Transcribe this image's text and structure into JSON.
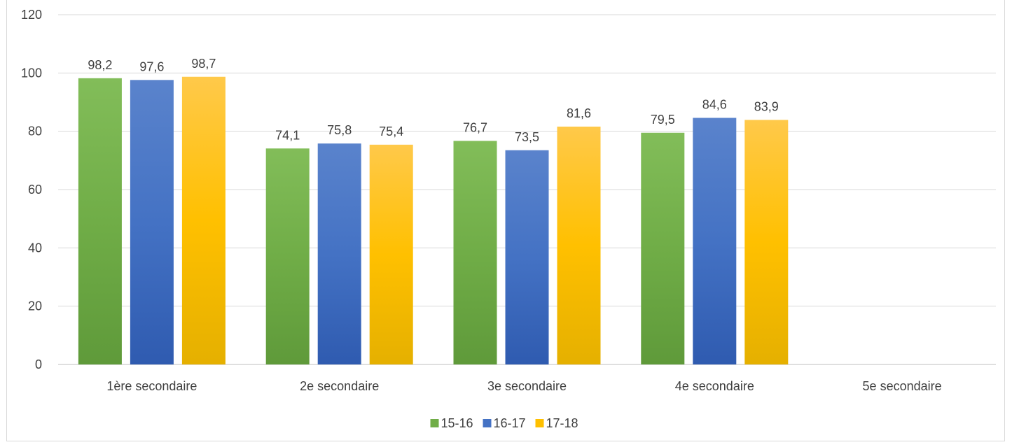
{
  "chart_data": {
    "type": "bar",
    "categories": [
      "1ère secondaire",
      "2e secondaire",
      "3e secondaire",
      "4e secondaire",
      "5e secondaire"
    ],
    "series": [
      {
        "name": "15-16",
        "values": [
          98.2,
          74.1,
          76.7,
          79.5,
          null
        ],
        "labels": [
          "98,2",
          "74,1",
          "76,7",
          "79,5",
          ""
        ],
        "color": "#70ad47",
        "color_light": "#82bd59",
        "color_dark": "#5f9a3a"
      },
      {
        "name": "16-17",
        "values": [
          97.6,
          75.8,
          73.5,
          84.6,
          null
        ],
        "labels": [
          "97,6",
          "75,8",
          "73,5",
          "84,6",
          ""
        ],
        "color": "#4472c4",
        "color_light": "#5a83cc",
        "color_dark": "#2f5bb0"
      },
      {
        "name": "17-18",
        "values": [
          98.7,
          75.4,
          81.6,
          83.9,
          null
        ],
        "labels": [
          "98,7",
          "75,4",
          "81,6",
          "83,9",
          ""
        ],
        "color": "#ffc000",
        "color_light": "#ffc94a",
        "color_dark": "#e5b000"
      }
    ],
    "yticks": [
      "0",
      "20",
      "40",
      "60",
      "80",
      "100",
      "120"
    ],
    "ylim": [
      0,
      120
    ],
    "grid": true,
    "legend_position": "bottom",
    "title": "",
    "xlabel": "",
    "ylabel": ""
  }
}
